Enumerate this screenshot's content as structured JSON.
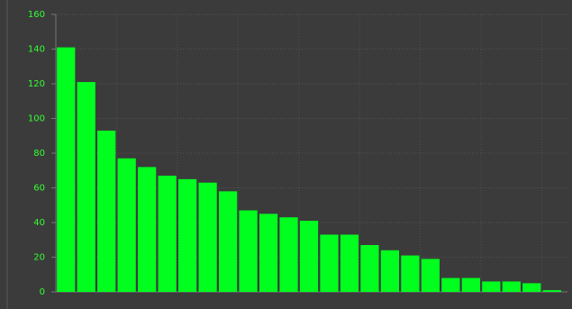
{
  "chart_data": {
    "type": "bar",
    "categories": [
      null,
      null,
      null,
      null,
      null,
      null,
      null,
      null,
      null,
      null,
      null,
      null,
      null,
      null,
      null,
      null,
      null,
      null,
      null,
      null,
      null,
      null,
      null,
      null,
      null
    ],
    "values": [
      141,
      121,
      93,
      77,
      72,
      67,
      65,
      63,
      58,
      47,
      45,
      43,
      41,
      33,
      33,
      27,
      24,
      21,
      19,
      8,
      8,
      6,
      6,
      5,
      1
    ],
    "color": "#00ff1e",
    "ylim": [
      0,
      160
    ],
    "yticks": [
      0,
      20,
      40,
      60,
      80,
      100,
      120,
      140,
      160
    ],
    "grid": true
  }
}
